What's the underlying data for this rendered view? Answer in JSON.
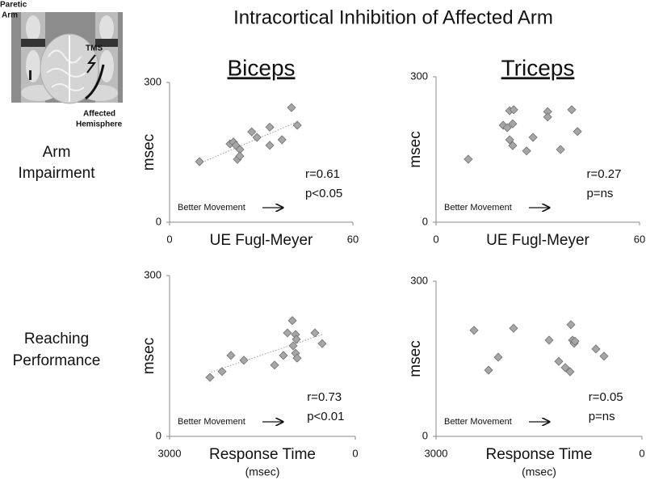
{
  "title": "Intracortical Inhibition of Affected Arm",
  "row_labels": [
    [
      "Arm",
      "Impairment"
    ],
    [
      "Reaching",
      "Performance"
    ]
  ],
  "inset": {
    "arm_label": [
      "Paretic",
      "Arm"
    ],
    "tms_label": "TMS",
    "hemisphere_label": [
      "Affected",
      "Hemisphere"
    ]
  },
  "chart_data": [
    {
      "type": "scatter",
      "title": "Biceps",
      "xlabel": "UE Fugl-Meyer",
      "ylabel": "msec",
      "x": [
        9.8,
        19.8,
        20.9,
        21.7,
        23.0,
        22.2,
        23.0,
        26.9,
        28.6,
        32.8,
        32.8,
        36.8,
        39.9,
        41.8
      ],
      "values": [
        130,
        168,
        172,
        165,
        156,
        135,
        142,
        194,
        182,
        204,
        165,
        177,
        246,
        208
      ],
      "xlim": [
        0,
        60
      ],
      "ylim": [
        0,
        300
      ],
      "xticks": [
        0,
        60
      ],
      "yticks": [
        0,
        300
      ],
      "annotations": [
        "r=0.61",
        "p<0.05"
      ],
      "arrow_label": "Better Movement",
      "color": "#a6a6a6",
      "trendline": true
    },
    {
      "type": "scatter",
      "title": "Triceps",
      "xlabel": "UE Fugl-Meyer",
      "ylabel": "msec",
      "x": [
        9.5,
        19.8,
        21.0,
        21.7,
        22.9,
        22.6,
        21.7,
        22.6,
        26.7,
        28.6,
        32.9,
        32.9,
        36.7,
        40.0,
        41.7
      ],
      "values": [
        130,
        200,
        195,
        230,
        232,
        203,
        170,
        158,
        147,
        175,
        228,
        217,
        150,
        232,
        187
      ],
      "xlim": [
        0,
        60
      ],
      "ylim": [
        0,
        300
      ],
      "xticks": [
        0,
        60
      ],
      "yticks": [
        0,
        300
      ],
      "annotations": [
        "r=0.27",
        "p=ns"
      ],
      "arrow_label": "Better Movement",
      "color": "#a6a6a6",
      "trendline": false
    },
    {
      "type": "scatter",
      "xlabel": "Response Time",
      "xlabel_note": "(msec)",
      "ylabel": "msec",
      "x": [
        2348,
        2152,
        2009,
        1800,
        1304,
        1161,
        1096,
        1017,
        1004,
        965,
        965,
        939,
        952,
        652,
        535
      ],
      "values": [
        110,
        121,
        151,
        142,
        133,
        151,
        193,
        216,
        169,
        190,
        155,
        146,
        181,
        193,
        173
      ],
      "xlim": [
        3000,
        0
      ],
      "ylim": [
        0,
        300
      ],
      "xticks": [
        3000,
        0
      ],
      "yticks": [
        0,
        300
      ],
      "annotations": [
        "r=0.73",
        "p<0.01"
      ],
      "arrow_label": "Better Movement",
      "color": "#a6a6a6",
      "trendline": true
    },
    {
      "type": "scatter",
      "xlabel": "Response Time",
      "xlabel_note": "(msec)",
      "ylabel": "msec",
      "x": [
        2447,
        2235,
        2094,
        1871,
        1353,
        1212,
        1118,
        1047,
        1035,
        1012,
        988,
        976,
        671,
        553
      ],
      "values": [
        205,
        128,
        153,
        209,
        186,
        145,
        133,
        125,
        216,
        186,
        180,
        184,
        169,
        155
      ],
      "xlim": [
        3000,
        0
      ],
      "ylim": [
        0,
        300
      ],
      "xticks": [
        3000,
        0
      ],
      "yticks": [
        0,
        300
      ],
      "annotations": [
        "r=0.05",
        "p=ns"
      ],
      "arrow_label": "Better Movement",
      "color": "#a6a6a6",
      "trendline": false
    }
  ]
}
